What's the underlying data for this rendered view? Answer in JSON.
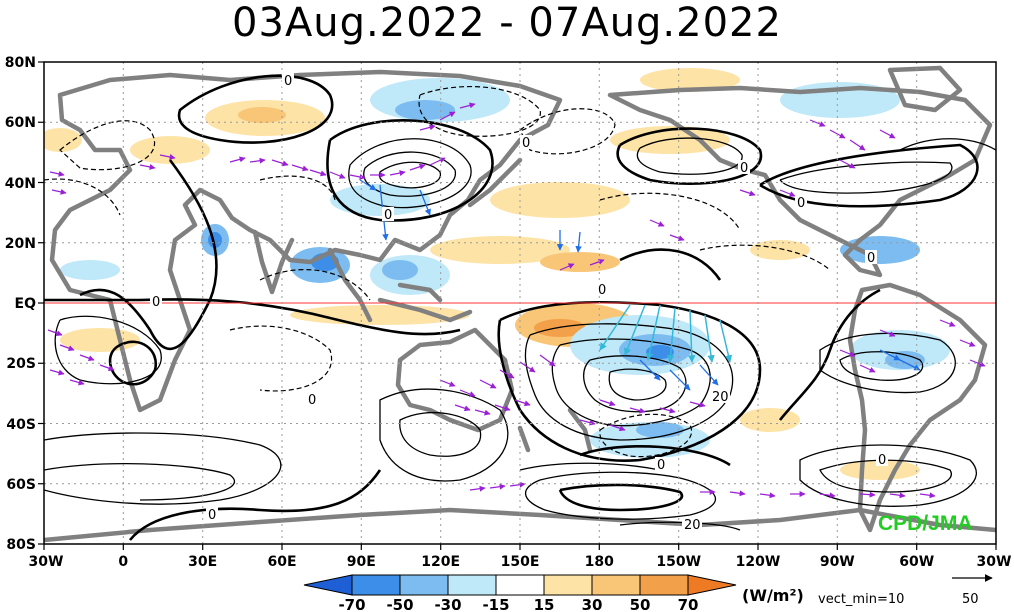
{
  "title": "03Aug.2022 - 07Aug.2022",
  "credit": "CPD/JMA",
  "lat_labels": [
    "80N",
    "60N",
    "40N",
    "20N",
    "EQ",
    "20S",
    "40S",
    "60S",
    "80S"
  ],
  "lon_labels": [
    "30W",
    "0",
    "30E",
    "60E",
    "90E",
    "120E",
    "150E",
    "180",
    "150W",
    "120W",
    "90W",
    "60W",
    "30W"
  ],
  "contour_labels": [
    "0",
    "0",
    "0",
    "0",
    "0",
    "0",
    "0",
    "0",
    "0",
    "0",
    "20",
    "20",
    "0",
    "0"
  ],
  "colorbar": {
    "labels": [
      "-70",
      "-50",
      "-30",
      "-15",
      "15",
      "30",
      "50",
      "70"
    ],
    "colors": [
      "#1e5fd6",
      "#3d8ee8",
      "#7cbcf0",
      "#bfe8f8",
      "#ffffff",
      "#fde3a6",
      "#f8c676",
      "#f3a04a",
      "#ee7a24"
    ]
  },
  "unit": "(W/m²)",
  "vect_min": "vect_min=10",
  "ref_vector": "50",
  "colors": {
    "land": "#808080",
    "contour": "#000000",
    "equator": "#ff3333",
    "vector_purple": "#9b1fd6",
    "vector_blue": "#1e6fe8",
    "vector_cyan": "#35b8d8",
    "credit": "#22cc22",
    "grid": "#9a9a9a"
  }
}
